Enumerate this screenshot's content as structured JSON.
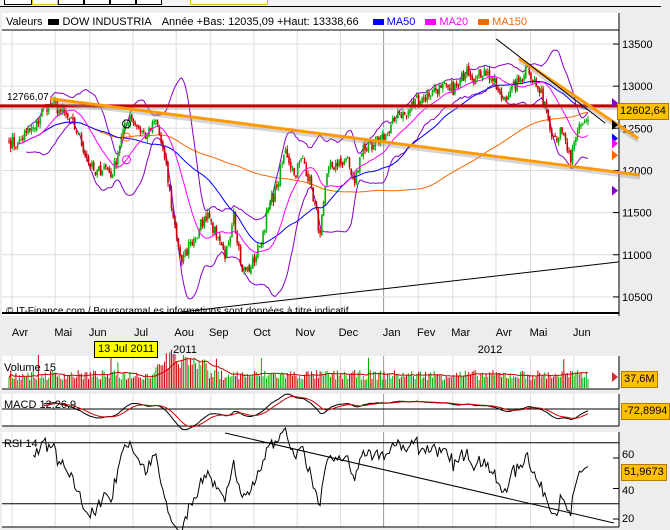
{
  "legend": {
    "valeurs": "Valeurs",
    "index_name": "DOW INDUSTRIA",
    "range_text": "Année +Bas: 12035,09 +Haut: 13338,66",
    "ma50": "MA50",
    "ma20": "MA20",
    "ma150": "MA150"
  },
  "colors": {
    "ma50": "#0000ff",
    "ma20": "#ff00ff",
    "ma150": "#ff6600",
    "bollinger": "#8800cc",
    "up": "#00b000",
    "down": "#cc0000",
    "trend_orange": "#ff9900",
    "resistance": "#c00000",
    "value_box": "#ffc000"
  },
  "copyright": "© IT-Finance.com / BoursoramaLes informations sont données à titre indicatif",
  "resistance_label": "12766,07",
  "last_price_label": "12602,64",
  "cursor_date": "13 Jul 2011",
  "volume": {
    "title": "Volume 15",
    "last": "37,6M"
  },
  "macd": {
    "title": "MACD 12,26,9",
    "last": "-72,8994"
  },
  "rsi": {
    "title": "RSI 14",
    "last": "51,9673",
    "ticks": [
      "60",
      "40",
      "20"
    ]
  },
  "chart_data": {
    "type": "candlestick",
    "title": "DOW INDUSTRIA",
    "x_months": [
      "Avr",
      "Mai",
      "Jun",
      "Jul",
      "Aou",
      "Sep",
      "Oct",
      "Nov",
      "Dec",
      "Jan",
      "Fev",
      "Mar",
      "Avr",
      "Mai",
      "Jun"
    ],
    "x_years": [
      "2011",
      "2012"
    ],
    "y_ticks": [
      "13500",
      "13000",
      "12500",
      "12000",
      "11500",
      "11000",
      "10500"
    ],
    "ylim": [
      10200,
      13700
    ],
    "weekly_closes": [
      12350,
      12300,
      12450,
      12500,
      12750,
      12800,
      12700,
      12600,
      12450,
      12150,
      11950,
      12050,
      11950,
      12400,
      12650,
      12500,
      12400,
      12600,
      12150,
      11450,
      10900,
      11150,
      11300,
      11500,
      11200,
      10950,
      11500,
      10800,
      10850,
      11100,
      11550,
      11800,
      12250,
      11950,
      12150,
      11800,
      11250,
      12050,
      12050,
      12150,
      11850,
      12300,
      12250,
      12400,
      12450,
      12700,
      12650,
      12850,
      12850,
      12950,
      12980,
      12950,
      13000,
      13230,
      13080,
      13200,
      13060,
      12850,
      12950,
      13050,
      13250,
      13000,
      12800,
      12400,
      12450,
      12100,
      12550,
      12602.64
    ],
    "resistance": 12766.07,
    "trendlines": [
      {
        "name": "orange-long",
        "color": "#ff9900",
        "points": [
          [
            17,
            12870
          ],
          [
            365,
            11945
          ]
        ]
      },
      {
        "name": "orange-short",
        "color": "#ff9900",
        "points": [
          [
            295,
            13330
          ],
          [
            364,
            12380
          ]
        ]
      },
      {
        "name": "support-black",
        "color": "#000000",
        "points": [
          [
            99,
            10320
          ],
          [
            353,
            10915
          ]
        ]
      },
      {
        "name": "black-thin",
        "color": "#000000",
        "points": [
          [
            282,
            13560
          ],
          [
            345,
            12560
          ]
        ]
      }
    ],
    "rsi_trendline": [
      [
        125,
        76.4
      ],
      [
        350,
        17.4
      ]
    ],
    "rsi_levels": [
      70,
      30
    ]
  }
}
